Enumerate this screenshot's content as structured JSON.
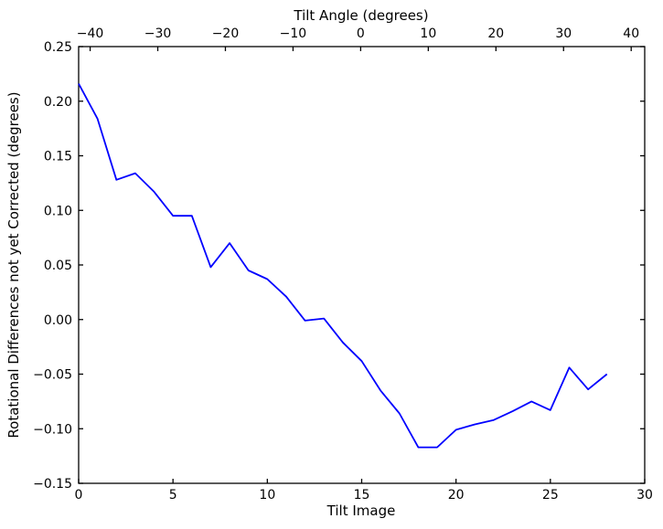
{
  "figure": {
    "background": "#ffffff"
  },
  "chart_data": {
    "type": "line",
    "title": "Tilt Angle (degrees)",
    "xlabel": "Tilt Image",
    "ylabel": "Rotational Differences not yet Corrected (degrees)",
    "line_color": "#0000ff",
    "axis_color": "#000000",
    "grid": false,
    "legend": null,
    "xlim": [
      0,
      30
    ],
    "ylim": [
      -0.15,
      0.25
    ],
    "top_xlim": [
      -41.7,
      42.0
    ],
    "x": [
      0,
      1,
      2,
      3,
      4,
      5,
      6,
      7,
      8,
      9,
      10,
      11,
      12,
      13,
      14,
      15,
      16,
      17,
      18,
      19,
      20,
      21,
      22,
      23,
      24,
      25,
      26,
      27,
      28
    ],
    "y": [
      0.216,
      0.184,
      0.128,
      0.134,
      0.117,
      0.095,
      0.095,
      0.048,
      0.07,
      0.045,
      0.037,
      0.021,
      -0.001,
      0.001,
      -0.021,
      -0.038,
      -0.065,
      -0.086,
      -0.117,
      -0.117,
      -0.101,
      -0.096,
      -0.092,
      -0.084,
      -0.075,
      -0.083,
      -0.044,
      -0.064,
      -0.05
    ],
    "x_ticks": {
      "values": [
        0,
        5,
        10,
        15,
        20,
        25,
        30
      ],
      "labels": [
        "0",
        "5",
        "10",
        "15",
        "20",
        "25",
        "30"
      ]
    },
    "y_ticks": {
      "values": [
        0.25,
        0.2,
        0.15,
        0.1,
        0.05,
        0.0,
        -0.05,
        -0.1,
        -0.15
      ],
      "labels": [
        "0.25",
        "0.20",
        "0.15",
        "0.10",
        "0.05",
        "0.00",
        "−0.05",
        "−0.10",
        "−0.15"
      ]
    },
    "top_ticks": {
      "values": [
        -40,
        -30,
        -20,
        -10,
        0,
        10,
        20,
        30,
        40
      ],
      "labels": [
        "−40",
        "−30",
        "−20",
        "−10",
        "0",
        "10",
        "20",
        "30",
        "40"
      ]
    }
  }
}
